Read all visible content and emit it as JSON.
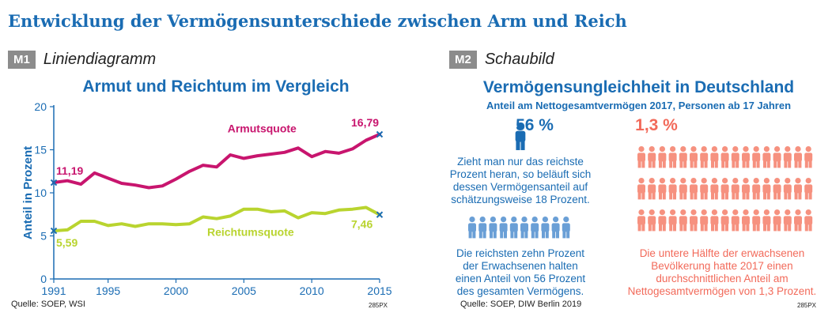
{
  "title": "Entwicklung der Vermögensunterschiede zwischen Arm und Reich",
  "m1": {
    "badge": "M1",
    "name": "Liniendiagramm",
    "source": "Quelle: SOEP, WSI",
    "code": "285PX"
  },
  "m2": {
    "badge": "M2",
    "name": "Schaubild",
    "title": "Vermögensungleichheit in Deutschland",
    "subtitle": "Anteil am Nettogesamtvermögen 2017, Personen ab 17 Jahren",
    "pct_rich": "56 %",
    "pct_poor": "1,3 %",
    "text_top_rich": [
      "Zieht man nur das reichste",
      "Prozent heran, so beläuft sich",
      "dessen Vermögensanteil auf",
      "schätzungsweise 18 Prozent."
    ],
    "text_bottom_rich": [
      "Die reichsten zehn Prozent",
      "der Erwachsenen halten",
      "einen Anteil von 56 Prozent",
      "des gesamten Vermögens."
    ],
    "text_poor": [
      "Die untere Hälfte der erwachsenen",
      "Bevölkerung hatte 2017 einen",
      "durchschnittlichen Anteil am",
      "Nettogesamtvermögen von 1,3 Prozent."
    ],
    "source": "Quelle: SOEP, DIW Berlin 2019",
    "code": "285PX",
    "icons": {
      "top_person": 1,
      "rich_row": 10,
      "poor_rows": 3,
      "poor_per_row": 17
    },
    "colors": {
      "blue": "#1a6cb3",
      "light_blue": "#6a9fd6",
      "salmon": "#f6917f"
    }
  },
  "chart_data": {
    "type": "line",
    "title": "Armut und Reichtum im Vergleich",
    "ylabel": "Anteil in Prozent",
    "xlabel": "",
    "xlim": [
      1991,
      2015
    ],
    "ylim": [
      0,
      20
    ],
    "xticks": [
      1991,
      1995,
      2000,
      2005,
      2010,
      2015
    ],
    "yticks": [
      0,
      5,
      10,
      15,
      20
    ],
    "grid": false,
    "colors": {
      "axis": "#1a6cb3",
      "armut": "#c8156e",
      "reichtum": "#b9d42f"
    },
    "series": [
      {
        "name": "Armutsquote",
        "x": [
          1991,
          1992,
          1993,
          1994,
          1995,
          1996,
          1997,
          1998,
          1999,
          2000,
          2001,
          2002,
          2003,
          2004,
          2005,
          2006,
          2007,
          2008,
          2009,
          2010,
          2011,
          2012,
          2013,
          2014,
          2015
        ],
        "values": [
          11.19,
          11.4,
          11.0,
          12.3,
          11.7,
          11.1,
          10.9,
          10.6,
          10.8,
          11.6,
          12.5,
          13.2,
          13.0,
          14.4,
          14.0,
          14.3,
          14.5,
          14.7,
          15.2,
          14.2,
          14.8,
          14.6,
          15.1,
          16.1,
          16.79
        ]
      },
      {
        "name": "Reichtumsquote",
        "x": [
          1991,
          1992,
          1993,
          1994,
          1995,
          1996,
          1997,
          1998,
          1999,
          2000,
          2001,
          2002,
          2003,
          2004,
          2005,
          2006,
          2007,
          2008,
          2009,
          2010,
          2011,
          2012,
          2013,
          2014,
          2015
        ],
        "values": [
          5.59,
          5.7,
          6.7,
          6.7,
          6.2,
          6.4,
          6.1,
          6.4,
          6.4,
          6.3,
          6.4,
          7.2,
          7.0,
          7.3,
          8.1,
          8.1,
          7.8,
          7.9,
          7.1,
          7.7,
          7.6,
          8.0,
          8.1,
          8.3,
          7.46
        ]
      }
    ],
    "labels": [
      {
        "text": "11,19",
        "series": "Armutsquote",
        "x": 1991,
        "y": 11.19
      },
      {
        "text": "16,79",
        "series": "Armutsquote",
        "x": 2015,
        "y": 16.79
      },
      {
        "text": "5,59",
        "series": "Reichtumsquote",
        "x": 1991,
        "y": 5.59
      },
      {
        "text": "7,46",
        "series": "Reichtumsquote",
        "x": 2015,
        "y": 7.46
      }
    ]
  }
}
